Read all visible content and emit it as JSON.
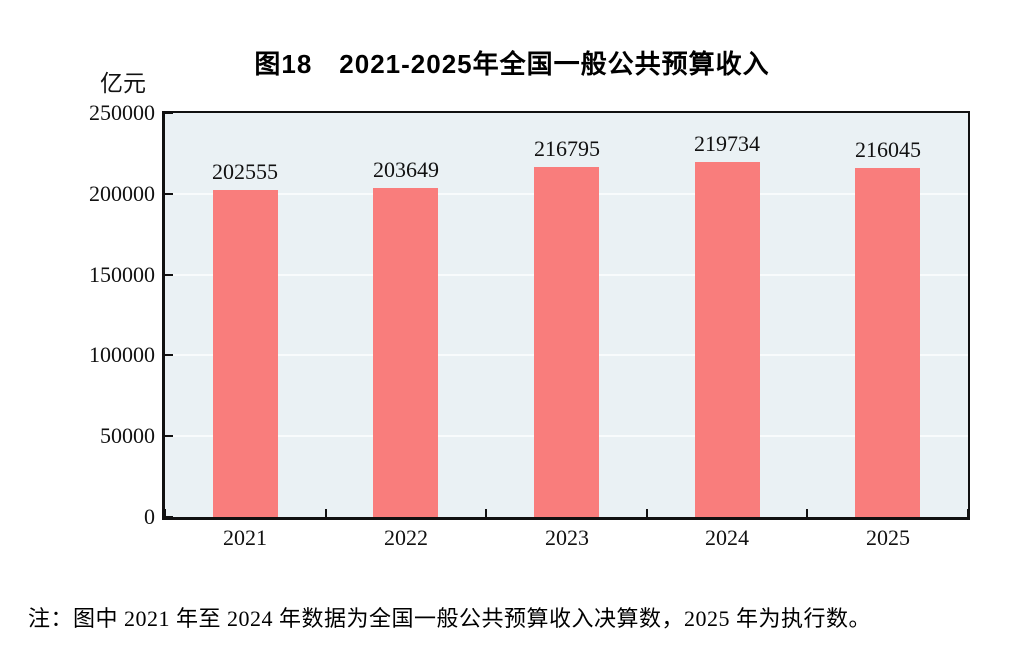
{
  "chart_data": {
    "type": "bar",
    "title": "图18　2021-2025年全国一般公共预算收入",
    "unit": "亿元",
    "categories": [
      "2021",
      "2022",
      "2023",
      "2024",
      "2025"
    ],
    "values": [
      202555,
      203649,
      216795,
      219734,
      216045
    ],
    "ylim": [
      0,
      250000
    ],
    "yticks": [
      0,
      50000,
      100000,
      150000,
      200000,
      250000
    ],
    "grid": true,
    "legend": "none",
    "bar_color": "#f97d7c",
    "plot_bg": "#eaf1f4",
    "grid_color": "#f8fbfc",
    "axis_color": "#111111"
  },
  "note": "注：图中 2021 年至 2024 年数据为全国一般公共预算收入决算数，2025 年为执行数。"
}
